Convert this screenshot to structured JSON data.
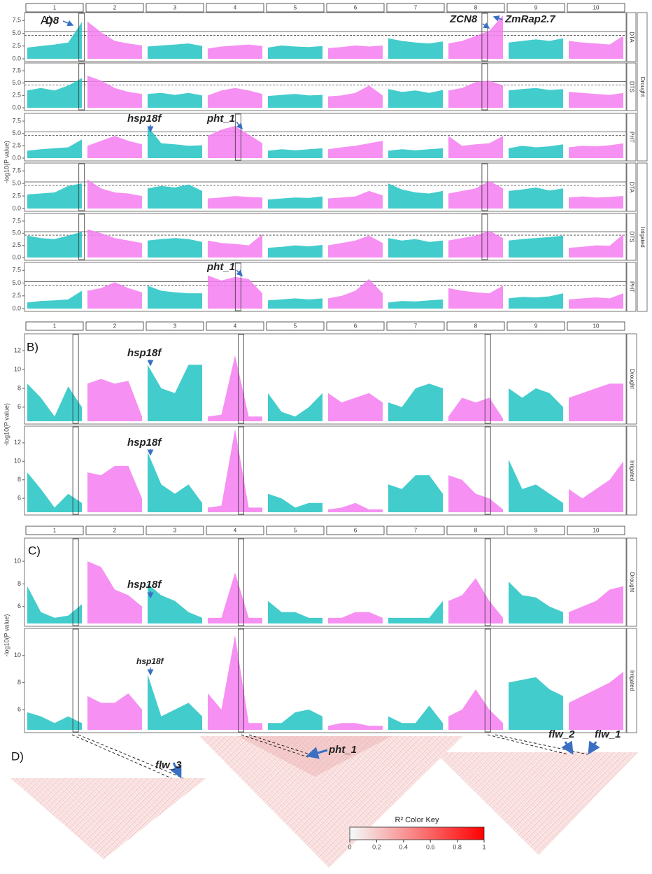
{
  "chart_data": [
    {
      "type": "manhattan",
      "panel_label": "A)",
      "ylabel": "-log10(P value)",
      "chromosomes": [
        "1",
        "2",
        "3",
        "4",
        "5",
        "6",
        "7",
        "8",
        "9",
        "10"
      ],
      "colors": [
        "#22c3c3",
        "#f47cf0"
      ],
      "ylim": [
        0,
        8.5
      ],
      "yticks": [
        {
          "value": 0,
          "label": "0.0"
        },
        2.5,
        {
          "value": 5,
          "label": "5.0"
        },
        7.5
      ],
      "thresholds": [
        5.3,
        4.6
      ],
      "annotations": [
        "D8",
        "ZCN8",
        "ZmRap2.7",
        "hsp18f",
        "pht_1",
        "pht_1"
      ],
      "environments": [
        {
          "name": "Drought",
          "traits": [
            {
              "name": "DTA",
              "profiles": [
                [
                  2.2,
                  2.5,
                  2.8,
                  3.2,
                  7.2
                ],
                [
                  7.3,
                  5.2,
                  3.5,
                  3,
                  2.6
                ],
                [
                  2.4,
                  2.6,
                  2.8,
                  3,
                  2.5
                ],
                [
                  2,
                  2.4,
                  2.6,
                  2.8,
                  2.5
                ],
                [
                  2.2,
                  2.6,
                  2.4,
                  2.3,
                  2.5
                ],
                [
                  2.1,
                  2.3,
                  2.6,
                  2.4,
                  2.6
                ],
                [
                  4,
                  3.5,
                  3.2,
                  3,
                  3.4
                ],
                [
                  3,
                  3.5,
                  4.5,
                  5.5,
                  8.5
                ],
                [
                  3.2,
                  3.5,
                  3.8,
                  3.5,
                  4
                ],
                [
                  3.5,
                  3.2,
                  3,
                  2.8,
                  4.5
                ]
              ]
            },
            {
              "name": "DTS",
              "profiles": [
                [
                  3.5,
                  4,
                  3.5,
                  4.5,
                  6
                ],
                [
                  6.5,
                  5.5,
                  4,
                  3.2,
                  2.8
                ],
                [
                  2.8,
                  3,
                  2.6,
                  3,
                  2.5
                ],
                [
                  2.5,
                  3.5,
                  4,
                  3.5,
                  2.8
                ],
                [
                  2.4,
                  2.6,
                  2.8,
                  2.5,
                  2.6
                ],
                [
                  2.3,
                  2.5,
                  3,
                  4.5,
                  2.5
                ],
                [
                  3.8,
                  3.2,
                  3.5,
                  3,
                  3.6
                ],
                [
                  3.5,
                  4,
                  5.2,
                  5.5,
                  4.5
                ],
                [
                  3.5,
                  3.8,
                  4,
                  3.6,
                  3.8
                ],
                [
                  3.2,
                  3,
                  2.8,
                  2.6,
                  3
                ]
              ]
            },
            {
              "name": "PHT",
              "profiles": [
                [
                  1.5,
                  1.8,
                  2,
                  2.2,
                  3.8
                ],
                [
                  2.5,
                  3.5,
                  4.5,
                  3.5,
                  2.8
                ],
                [
                  6.5,
                  3,
                  2.8,
                  2.5,
                  2.6
                ],
                [
                  4.5,
                  5.8,
                  6.5,
                  4.8,
                  3
                ],
                [
                  1.5,
                  1.8,
                  1.6,
                  1.8,
                  2
                ],
                [
                  1.8,
                  2.2,
                  2.5,
                  3,
                  3.5
                ],
                [
                  1.5,
                  1.8,
                  1.6,
                  1.8,
                  2
                ],
                [
                  4.5,
                  2.5,
                  2.8,
                  3,
                  4.5
                ],
                [
                  2,
                  2.5,
                  2.2,
                  2.4,
                  2.8
                ],
                [
                  2.2,
                  2.5,
                  2.4,
                  2.6,
                  3
                ]
              ]
            }
          ]
        },
        {
          "name": "Irrigated",
          "traits": [
            {
              "name": "DTA",
              "profiles": [
                [
                  2.8,
                  3,
                  3.2,
                  4.5,
                  5
                ],
                [
                  5.8,
                  4,
                  3.2,
                  3,
                  2.5
                ],
                [
                  4,
                  4.5,
                  4.2,
                  4.8,
                  3.5
                ],
                [
                  2,
                  2.2,
                  2.5,
                  2.3,
                  2.2
                ],
                [
                  1.8,
                  2,
                  2.2,
                  2.1,
                  2.4
                ],
                [
                  2,
                  2.2,
                  2.4,
                  3.5,
                  2.6
                ],
                [
                  5,
                  3.8,
                  3.2,
                  3,
                  3.5
                ],
                [
                  3,
                  3.5,
                  4,
                  5.5,
                  4
                ],
                [
                  3.5,
                  3.8,
                  4.2,
                  3.6,
                  4
                ],
                [
                  2.2,
                  2.4,
                  2.2,
                  2.3,
                  2.5
                ]
              ]
            },
            {
              "name": "DTS",
              "profiles": [
                [
                  4.5,
                  4,
                  3.8,
                  4.5,
                  5.3
                ],
                [
                  5.8,
                  5,
                  4,
                  3.5,
                  3
                ],
                [
                  3.5,
                  3.8,
                  4,
                  3.8,
                  3.2
                ],
                [
                  3.5,
                  3,
                  2.8,
                  2.5,
                  4.8
                ],
                [
                  2,
                  2.2,
                  2.5,
                  2.3,
                  2.6
                ],
                [
                  2.5,
                  3,
                  3.5,
                  4.5,
                  3
                ],
                [
                  4,
                  3.5,
                  3.8,
                  3.2,
                  3.5
                ],
                [
                  3.5,
                  4,
                  4.5,
                  5.5,
                  4
                ],
                [
                  3.5,
                  3.8,
                  4,
                  4.2,
                  4.5
                ],
                [
                  2,
                  2.2,
                  2.5,
                  2.4,
                  4.8
                ]
              ]
            },
            {
              "name": "PHT",
              "profiles": [
                [
                  1.2,
                  1.5,
                  1.6,
                  1.8,
                  3.5
                ],
                [
                  3.5,
                  4,
                  5.2,
                  4,
                  3.2
                ],
                [
                  4.5,
                  3.5,
                  3.2,
                  3,
                  3
                ],
                [
                  6.5,
                  5.5,
                  6.2,
                  5.8,
                  3
                ],
                [
                  1.6,
                  1.8,
                  2,
                  1.8,
                  2
                ],
                [
                  2,
                  2.5,
                  3.5,
                  5.8,
                  3
                ],
                [
                  1.2,
                  1.5,
                  1.4,
                  1.6,
                  1.8
                ],
                [
                  4,
                  3.5,
                  3.2,
                  3,
                  4.5
                ],
                [
                  2,
                  2.3,
                  2.2,
                  2.4,
                  3
                ],
                [
                  1.8,
                  2,
                  2.2,
                  2,
                  3
                ]
              ]
            }
          ]
        }
      ]
    },
    {
      "type": "manhattan",
      "panel_label": "B)",
      "ylabel": "-log10(P value)",
      "chromosomes": [
        "1",
        "2",
        "3",
        "4",
        "5",
        "6",
        "7",
        "8",
        "9",
        "10"
      ],
      "colors": [
        "#22c3c3",
        "#f47cf0"
      ],
      "ylim": [
        4.5,
        13.5
      ],
      "yticks": [
        6,
        8,
        10,
        12
      ],
      "annotations": [
        "hsp18f",
        "hsp18f"
      ],
      "environments": [
        {
          "name": "Drought",
          "profiles": [
            [
              8.5,
              7,
              5,
              8.2,
              6
            ],
            [
              8.5,
              9,
              8.5,
              8.8,
              5
            ],
            [
              10.5,
              8,
              7.5,
              10.5,
              10.5
            ],
            [
              5,
              5.2,
              11.5,
              5,
              5
            ],
            [
              7.5,
              5.5,
              5,
              6,
              7.5
            ],
            [
              7.5,
              6.5,
              7,
              7.5,
              6.5
            ],
            [
              6.5,
              6,
              8,
              8.5,
              8
            ],
            [
              5,
              7,
              6.5,
              7,
              4.8
            ],
            [
              8,
              7,
              8,
              7.5,
              6
            ],
            [
              7,
              7.5,
              8,
              8.5,
              8.5
            ]
          ]
        },
        {
          "name": "Irrigated",
          "profiles": [
            [
              8.8,
              7,
              5,
              6.5,
              5.5
            ],
            [
              8.8,
              8.5,
              9.5,
              9.5,
              6
            ],
            [
              11,
              7.5,
              6.5,
              7.5,
              5.5
            ],
            [
              5,
              5.2,
              13.5,
              5,
              5
            ],
            [
              6.5,
              6,
              5,
              5.5,
              5.5
            ],
            [
              4.8,
              5,
              5.5,
              4.8,
              4.8
            ],
            [
              7.5,
              7,
              8.5,
              8.5,
              6.5
            ],
            [
              8.5,
              8,
              6.5,
              6,
              4.8
            ],
            [
              10.2,
              7,
              7.5,
              6.5,
              5.5
            ],
            [
              7,
              6,
              7,
              8,
              10
            ]
          ]
        }
      ]
    },
    {
      "type": "manhattan",
      "panel_label": "C)",
      "ylabel": "-log10(P value)",
      "chromosomes": [
        "1",
        "2",
        "3",
        "4",
        "5",
        "6",
        "7",
        "8",
        "9",
        "10"
      ],
      "colors": [
        "#22c3c3",
        "#f47cf0"
      ],
      "ylim": [
        4.5,
        11.8
      ],
      "yticks": [
        6,
        8,
        10
      ],
      "annotations": [
        "hsp18f",
        "hsp18f"
      ],
      "environments": [
        {
          "name": "Drought",
          "profiles": [
            [
              7.8,
              5.5,
              5,
              5.2,
              6.2
            ],
            [
              10,
              9.5,
              7.5,
              7,
              6
            ],
            [
              8,
              7,
              6.5,
              5.5,
              5
            ],
            [
              5,
              5,
              9,
              5,
              5
            ],
            [
              6.5,
              5.5,
              5.5,
              5,
              5
            ],
            [
              5,
              5,
              5.5,
              5.5,
              5
            ],
            [
              5,
              5,
              5,
              5,
              6.5
            ],
            [
              6.5,
              7,
              8.5,
              6.5,
              5
            ],
            [
              8.2,
              7,
              6.8,
              6,
              5.5
            ],
            [
              5.5,
              6,
              6.5,
              7.5,
              7.8
            ]
          ]
        },
        {
          "name": "Irrigated",
          "profiles": [
            [
              5.8,
              5.5,
              5,
              5.5,
              5
            ],
            [
              7,
              6.5,
              6.5,
              7.2,
              6
            ],
            [
              8.6,
              5.5,
              6,
              6.5,
              5.5
            ],
            [
              7.2,
              6,
              11.5,
              5,
              5
            ],
            [
              5,
              5,
              5.8,
              6,
              5.5
            ],
            [
              4.8,
              5,
              5,
              4.8,
              4.8
            ],
            [
              5.5,
              5,
              5,
              6.3,
              5
            ],
            [
              5.5,
              6,
              7.5,
              6,
              5
            ],
            [
              8,
              8.2,
              8.4,
              7.5,
              7
            ],
            [
              6.5,
              7,
              7.5,
              8,
              8.8
            ]
          ]
        }
      ]
    }
  ],
  "ld_panel": {
    "label": "D)",
    "annotations": [
      "flw_3",
      "pht_1",
      "flw_2",
      "flw_1"
    ],
    "color_key": {
      "title": "R² Color Key",
      "ticks": [
        0,
        0.2,
        0.4,
        0.6,
        0.8,
        1
      ],
      "colors": [
        "#f4fbfb",
        "#ff0000"
      ]
    }
  }
}
